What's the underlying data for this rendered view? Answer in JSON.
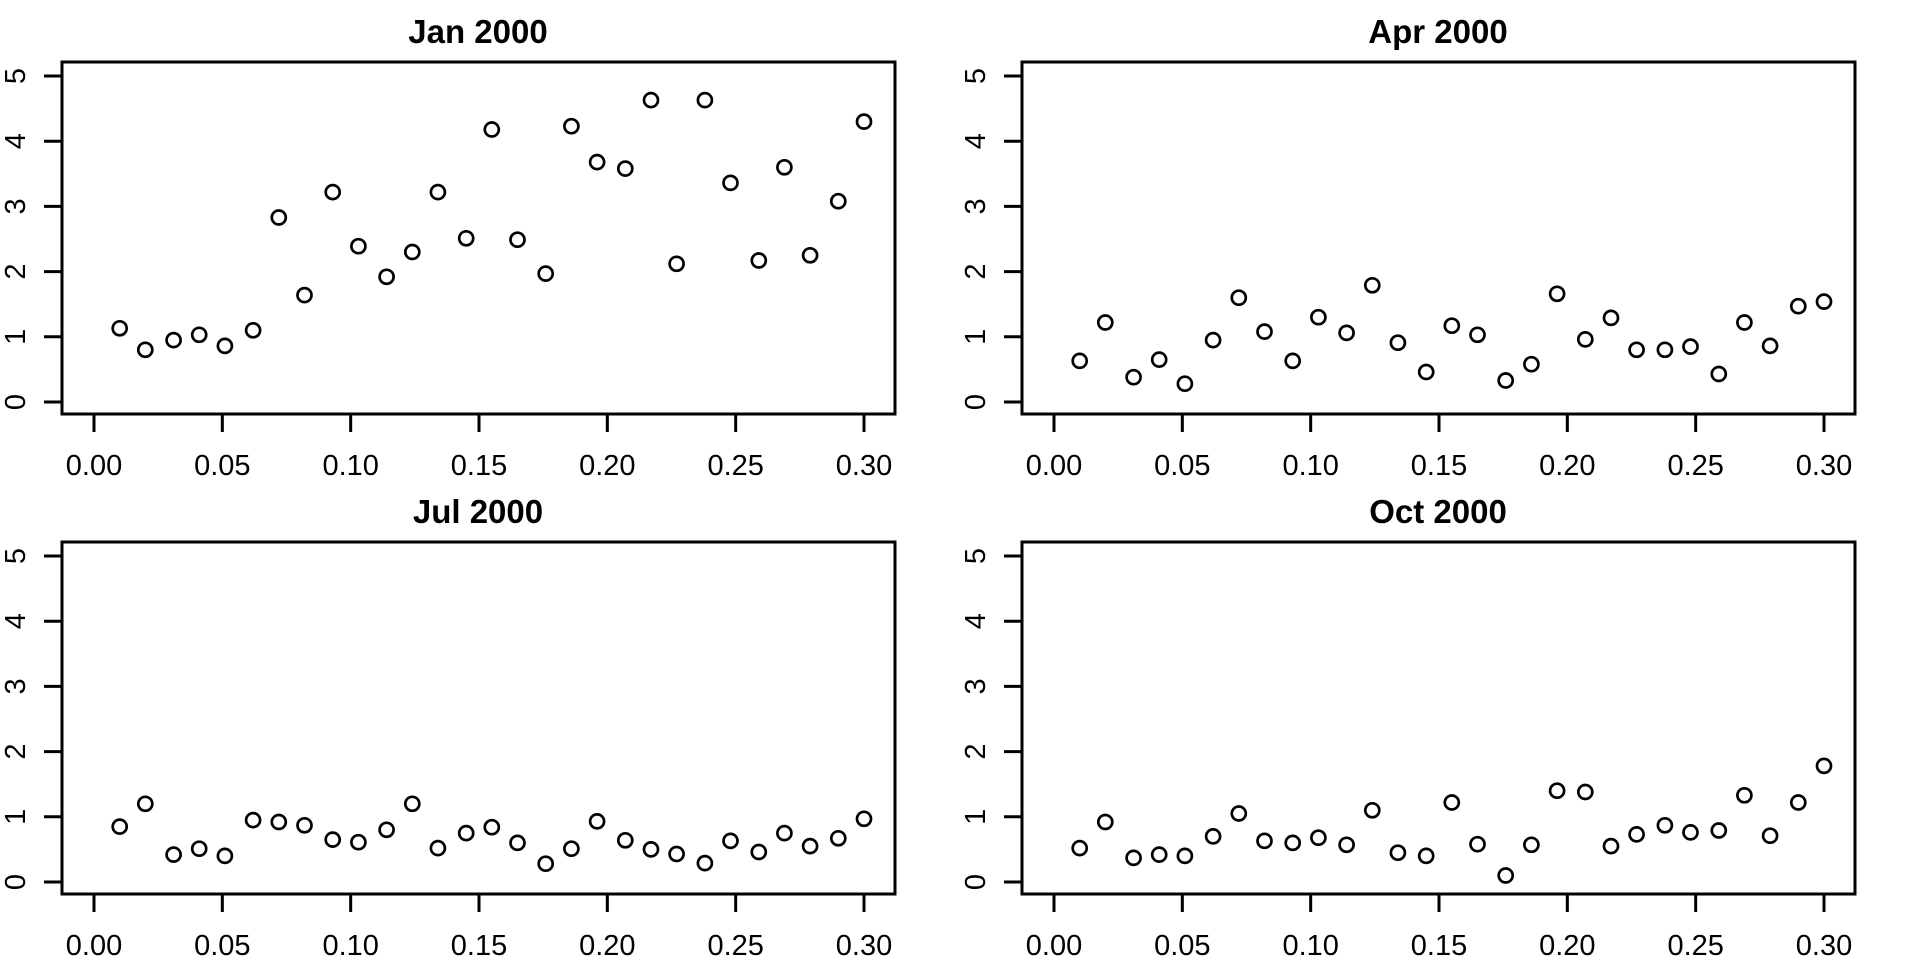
{
  "page": {
    "background_color": "#ffffff",
    "foreground_color": "#000000",
    "layout": "2x2 panel grid of scatter plots"
  },
  "chart_data": [
    {
      "type": "scatter",
      "title": "Jan 2000",
      "marker": "open-circle",
      "grid": "off",
      "xlim": [
        0,
        0.3
      ],
      "ylim": [
        0,
        5
      ],
      "x_ticks": {
        "values": [
          0.0,
          0.05,
          0.1,
          0.15,
          0.2,
          0.25,
          0.3
        ],
        "labels": [
          "0.00",
          "0.05",
          "0.10",
          "0.15",
          "0.20",
          "0.25",
          "0.30"
        ]
      },
      "y_ticks": {
        "values": [
          0,
          1,
          2,
          3,
          4,
          5
        ],
        "labels": [
          "0",
          "1",
          "2",
          "3",
          "4",
          "5"
        ]
      },
      "x": [
        0.01,
        0.02,
        0.031,
        0.041,
        0.051,
        0.062,
        0.072,
        0.082,
        0.093,
        0.103,
        0.114,
        0.124,
        0.134,
        0.145,
        0.155,
        0.165,
        0.176,
        0.186,
        0.196,
        0.207,
        0.217,
        0.227,
        0.238,
        0.248,
        0.259,
        0.269,
        0.279,
        0.29,
        0.3
      ],
      "y": [
        1.13,
        0.8,
        0.95,
        1.03,
        0.86,
        1.1,
        2.83,
        1.64,
        3.22,
        2.39,
        1.92,
        2.3,
        3.22,
        2.51,
        4.18,
        2.49,
        1.97,
        4.23,
        3.68,
        3.58,
        4.63,
        2.12,
        4.63,
        3.36,
        2.17,
        3.6,
        2.25,
        3.08,
        4.3
      ]
    },
    {
      "type": "scatter",
      "title": "Apr 2000",
      "marker": "open-circle",
      "grid": "off",
      "xlim": [
        0,
        0.3
      ],
      "ylim": [
        0,
        5
      ],
      "x_ticks": {
        "values": [
          0.0,
          0.05,
          0.1,
          0.15,
          0.2,
          0.25,
          0.3
        ],
        "labels": [
          "0.00",
          "0.05",
          "0.10",
          "0.15",
          "0.20",
          "0.25",
          "0.30"
        ]
      },
      "y_ticks": {
        "values": [
          0,
          1,
          2,
          3,
          4,
          5
        ],
        "labels": [
          "0",
          "1",
          "2",
          "3",
          "4",
          "5"
        ]
      },
      "x": [
        0.01,
        0.02,
        0.031,
        0.041,
        0.051,
        0.062,
        0.072,
        0.082,
        0.093,
        0.103,
        0.114,
        0.124,
        0.134,
        0.145,
        0.155,
        0.165,
        0.176,
        0.186,
        0.196,
        0.207,
        0.217,
        0.227,
        0.238,
        0.248,
        0.259,
        0.269,
        0.279,
        0.29,
        0.3
      ],
      "y": [
        0.63,
        1.22,
        0.38,
        0.65,
        0.28,
        0.95,
        1.6,
        1.08,
        0.63,
        1.3,
        1.06,
        1.79,
        0.91,
        0.46,
        1.17,
        1.03,
        0.33,
        0.58,
        1.66,
        0.96,
        1.29,
        0.8,
        0.8,
        0.85,
        0.43,
        1.22,
        0.86,
        1.47,
        1.54
      ]
    },
    {
      "type": "scatter",
      "title": "Jul 2000",
      "marker": "open-circle",
      "grid": "off",
      "xlim": [
        0,
        0.3
      ],
      "ylim": [
        0,
        5
      ],
      "x_ticks": {
        "values": [
          0.0,
          0.05,
          0.1,
          0.15,
          0.2,
          0.25,
          0.3
        ],
        "labels": [
          "0.00",
          "0.05",
          "0.10",
          "0.15",
          "0.20",
          "0.25",
          "0.30"
        ]
      },
      "y_ticks": {
        "values": [
          0,
          1,
          2,
          3,
          4,
          5
        ],
        "labels": [
          "0",
          "1",
          "2",
          "3",
          "4",
          "5"
        ]
      },
      "x": [
        0.01,
        0.02,
        0.031,
        0.041,
        0.051,
        0.062,
        0.072,
        0.082,
        0.093,
        0.103,
        0.114,
        0.124,
        0.134,
        0.145,
        0.155,
        0.165,
        0.176,
        0.186,
        0.196,
        0.207,
        0.217,
        0.227,
        0.238,
        0.248,
        0.259,
        0.269,
        0.279,
        0.29,
        0.3
      ],
      "y": [
        0.85,
        1.2,
        0.42,
        0.51,
        0.4,
        0.95,
        0.92,
        0.87,
        0.65,
        0.61,
        0.8,
        1.2,
        0.52,
        0.75,
        0.84,
        0.6,
        0.28,
        0.51,
        0.93,
        0.64,
        0.5,
        0.43,
        0.29,
        0.63,
        0.46,
        0.75,
        0.55,
        0.67,
        0.97
      ]
    },
    {
      "type": "scatter",
      "title": "Oct 2000",
      "marker": "open-circle",
      "grid": "off",
      "xlim": [
        0,
        0.3
      ],
      "ylim": [
        0,
        5
      ],
      "x_ticks": {
        "values": [
          0.0,
          0.05,
          0.1,
          0.15,
          0.2,
          0.25,
          0.3
        ],
        "labels": [
          "0.00",
          "0.05",
          "0.10",
          "0.15",
          "0.20",
          "0.25",
          "0.30"
        ]
      },
      "y_ticks": {
        "values": [
          0,
          1,
          2,
          3,
          4,
          5
        ],
        "labels": [
          "0",
          "1",
          "2",
          "3",
          "4",
          "5"
        ]
      },
      "x": [
        0.01,
        0.02,
        0.031,
        0.041,
        0.051,
        0.062,
        0.072,
        0.082,
        0.093,
        0.103,
        0.114,
        0.124,
        0.134,
        0.145,
        0.155,
        0.165,
        0.176,
        0.186,
        0.196,
        0.207,
        0.217,
        0.227,
        0.238,
        0.248,
        0.259,
        0.269,
        0.279,
        0.29,
        0.3
      ],
      "y": [
        0.52,
        0.92,
        0.37,
        0.42,
        0.4,
        0.7,
        1.05,
        0.63,
        0.6,
        0.68,
        0.57,
        1.1,
        0.45,
        0.4,
        1.22,
        0.58,
        0.1,
        0.57,
        1.4,
        1.38,
        0.55,
        0.73,
        0.87,
        0.76,
        0.79,
        1.33,
        0.71,
        1.22,
        1.78
      ]
    }
  ]
}
